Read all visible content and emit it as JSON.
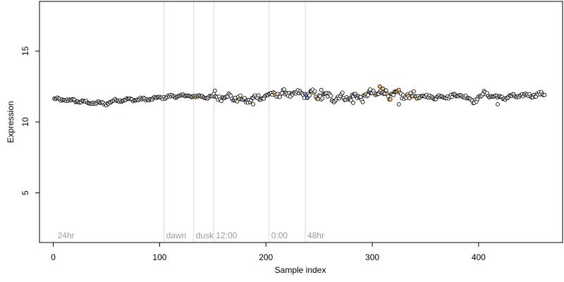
{
  "chart_data": {
    "type": "scatter",
    "title": "",
    "xlabel": "Sample index",
    "ylabel": "Expression",
    "xlim": [
      -13,
      479
    ],
    "ylim": [
      1.5,
      18.5
    ],
    "x_ticks": [
      0,
      100,
      200,
      300,
      400
    ],
    "y_ticks": [
      5,
      10,
      15
    ],
    "grid": false,
    "legend": "none",
    "colors": {
      "point_edge": "#000000",
      "default_fill": "#ffffff",
      "highlight_fill": "#ffd27a",
      "blue_fill": "#7f9fd6",
      "vline": "#d9d9d9",
      "vlabel": "#9a9a9a"
    },
    "vlines": [
      {
        "x": 104,
        "label": "dawn"
      },
      {
        "x": 132,
        "label": "dusk"
      },
      {
        "x": 151,
        "label": "12:00"
      },
      {
        "x": 203,
        "label": "0:00"
      },
      {
        "x": 237,
        "label": "48hr"
      }
    ],
    "corner_label": {
      "x": 2,
      "label": "24hr"
    },
    "series": [
      {
        "x_range": [
          1,
          462
        ],
        "anchors": [
          [
            1,
            11.6
          ],
          [
            20,
            11.5
          ],
          [
            35,
            11.35
          ],
          [
            50,
            11.3
          ],
          [
            60,
            11.55
          ],
          [
            90,
            11.6
          ],
          [
            104,
            11.75
          ],
          [
            120,
            11.85
          ],
          [
            150,
            11.75
          ],
          [
            165,
            11.8
          ],
          [
            180,
            11.5
          ],
          [
            200,
            11.85
          ],
          [
            215,
            12.0
          ],
          [
            240,
            11.95
          ],
          [
            260,
            11.75
          ],
          [
            290,
            11.75
          ],
          [
            305,
            12.1
          ],
          [
            315,
            11.95
          ],
          [
            340,
            11.8
          ],
          [
            360,
            11.75
          ],
          [
            385,
            11.9
          ],
          [
            395,
            11.45
          ],
          [
            405,
            12.0
          ],
          [
            420,
            11.7
          ],
          [
            440,
            11.85
          ],
          [
            462,
            11.95
          ]
        ],
        "noise_regions": [
          {
            "from": 1,
            "to": 150,
            "amplitude": 0.1
          },
          {
            "from": 150,
            "to": 240,
            "amplitude": 0.22
          },
          {
            "from": 240,
            "to": 340,
            "amplitude": 0.28
          },
          {
            "from": 340,
            "to": 462,
            "amplitude": 0.14
          }
        ],
        "outliers": [
          [
            152,
            12.2
          ],
          [
            188,
            11.25
          ],
          [
            252,
            12.25
          ],
          [
            307,
            12.5
          ],
          [
            310,
            12.35
          ],
          [
            325,
            11.25
          ],
          [
            418,
            11.25
          ],
          [
            282,
            11.35
          ]
        ]
      }
    ]
  }
}
